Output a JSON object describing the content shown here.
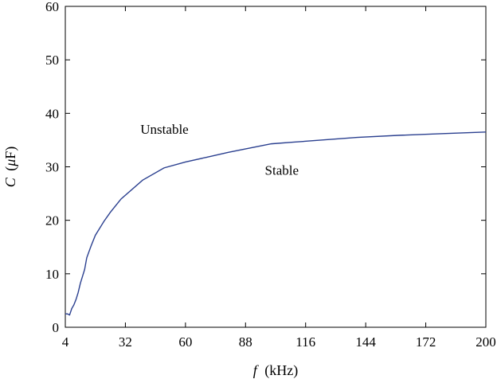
{
  "chart_data": {
    "type": "line",
    "title": "",
    "xlabel": "f (kHz)",
    "ylabel": "C (μF)",
    "xlabel_parts": {
      "var": "f",
      "unit": "(kHz)"
    },
    "ylabel_parts": {
      "var": "C",
      "unit_open": "(",
      "unit_greek": "μ",
      "unit_rest": "F)"
    },
    "xlim": [
      4,
      200
    ],
    "ylim": [
      0,
      60
    ],
    "xticks": [
      4,
      32,
      60,
      88,
      116,
      144,
      172,
      200
    ],
    "yticks": [
      0,
      10,
      20,
      30,
      40,
      50,
      60
    ],
    "grid": false,
    "series": [
      {
        "color": "#2a3f8f",
        "x": [
          4,
          5,
          6,
          7,
          8,
          9,
          10,
          11,
          12,
          13,
          14,
          16,
          18,
          20,
          22,
          25,
          30,
          40,
          50,
          60,
          70,
          80,
          90,
          100,
          110,
          120,
          140,
          160,
          180,
          200
        ],
        "y": [
          2.5,
          2.5,
          2.3,
          3.5,
          4.2,
          5.2,
          6.5,
          8.2,
          9.5,
          10.8,
          13.0,
          15.2,
          17.2,
          18.5,
          19.8,
          21.5,
          24.0,
          27.5,
          29.8,
          30.9,
          31.8,
          32.7,
          33.5,
          34.3,
          34.6,
          34.9,
          35.5,
          35.9,
          36.2,
          36.5
        ]
      }
    ],
    "annotations": [
      {
        "text": "Unstable",
        "x": 39,
        "y": 36.2
      },
      {
        "text": "Stable",
        "x": 97,
        "y": 28.5
      }
    ]
  }
}
